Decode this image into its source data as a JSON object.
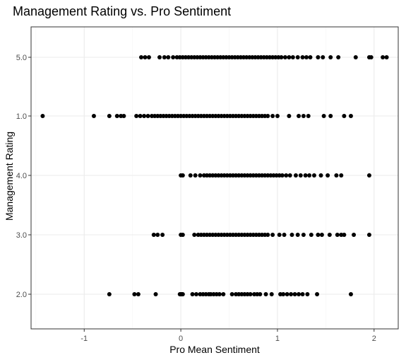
{
  "chart_data": {
    "type": "scatter",
    "title": "Management Rating vs. Pro Sentiment",
    "xlabel": "Pro Mean Sentiment",
    "ylabel": "Management Rating",
    "x_ticks": [
      "-1",
      "0",
      "1",
      "2"
    ],
    "x_tick_values": [
      -1,
      0,
      1,
      2
    ],
    "categories": [
      "5.0",
      "1.0",
      "4.0",
      "3.0",
      "2.0"
    ],
    "xlim": [
      -1.55,
      2.25
    ],
    "grid": true,
    "legend": "none",
    "colors": {
      "point": "#000000",
      "panel_border": "#333333",
      "grid_major": "#ebebeb",
      "grid_minor": "#f5f5f5"
    },
    "series": [
      {
        "category": "5.0",
        "x": [
          -0.41,
          -0.37,
          -0.33,
          -0.22,
          -0.17,
          -0.13,
          -0.08,
          -0.04,
          -0.01,
          0.02,
          0.05,
          0.08,
          0.11,
          0.14,
          0.17,
          0.2,
          0.23,
          0.26,
          0.29,
          0.32,
          0.35,
          0.38,
          0.41,
          0.44,
          0.47,
          0.5,
          0.53,
          0.56,
          0.59,
          0.62,
          0.65,
          0.68,
          0.71,
          0.74,
          0.77,
          0.8,
          0.83,
          0.86,
          0.89,
          0.92,
          0.95,
          0.98,
          1.01,
          1.04,
          1.08,
          1.12,
          1.16,
          1.21,
          1.26,
          1.3,
          1.34,
          1.42,
          1.47,
          1.55,
          1.63,
          1.81,
          1.95,
          1.97,
          2.09,
          2.13
        ]
      },
      {
        "category": "1.0",
        "x": [
          -1.43,
          -0.9,
          -0.74,
          -0.66,
          -0.62,
          -0.59,
          -0.46,
          -0.42,
          -0.38,
          -0.34,
          -0.3,
          -0.27,
          -0.24,
          -0.21,
          -0.18,
          -0.15,
          -0.12,
          -0.09,
          -0.06,
          -0.03,
          0.0,
          0.03,
          0.06,
          0.09,
          0.12,
          0.15,
          0.18,
          0.21,
          0.24,
          0.27,
          0.3,
          0.33,
          0.36,
          0.39,
          0.42,
          0.45,
          0.48,
          0.51,
          0.54,
          0.57,
          0.6,
          0.63,
          0.66,
          0.69,
          0.72,
          0.75,
          0.78,
          0.81,
          0.84,
          0.87,
          0.9,
          0.95,
          1.0,
          1.12,
          1.22,
          1.27,
          1.32,
          1.48,
          1.55,
          1.69,
          1.76
        ]
      },
      {
        "category": "4.0",
        "x": [
          0.0,
          0.02,
          0.1,
          0.15,
          0.2,
          0.24,
          0.27,
          0.3,
          0.33,
          0.36,
          0.39,
          0.42,
          0.45,
          0.48,
          0.51,
          0.54,
          0.57,
          0.6,
          0.63,
          0.66,
          0.69,
          0.72,
          0.75,
          0.78,
          0.81,
          0.84,
          0.87,
          0.9,
          0.93,
          0.96,
          0.99,
          1.02,
          1.05,
          1.09,
          1.13,
          1.19,
          1.24,
          1.29,
          1.33,
          1.38,
          1.45,
          1.52,
          1.61,
          1.66,
          1.95
        ]
      },
      {
        "category": "3.0",
        "x": [
          -0.28,
          -0.24,
          -0.19,
          0.0,
          0.02,
          0.14,
          0.18,
          0.21,
          0.24,
          0.27,
          0.3,
          0.33,
          0.36,
          0.39,
          0.42,
          0.45,
          0.48,
          0.51,
          0.54,
          0.57,
          0.6,
          0.63,
          0.66,
          0.69,
          0.72,
          0.75,
          0.78,
          0.81,
          0.84,
          0.87,
          0.9,
          0.95,
          1.02,
          1.07,
          1.15,
          1.21,
          1.27,
          1.35,
          1.42,
          1.46,
          1.54,
          1.62,
          1.66,
          1.69,
          1.79,
          1.95
        ]
      },
      {
        "category": "2.0",
        "x": [
          -0.74,
          -0.48,
          -0.44,
          -0.26,
          -0.01,
          0.0,
          0.01,
          0.02,
          0.12,
          0.16,
          0.2,
          0.23,
          0.26,
          0.29,
          0.31,
          0.34,
          0.37,
          0.4,
          0.44,
          0.53,
          0.57,
          0.6,
          0.63,
          0.66,
          0.69,
          0.72,
          0.76,
          0.79,
          0.82,
          0.88,
          0.94,
          1.03,
          1.06,
          1.1,
          1.14,
          1.18,
          1.22,
          1.26,
          1.31,
          1.41,
          1.76
        ]
      }
    ]
  }
}
